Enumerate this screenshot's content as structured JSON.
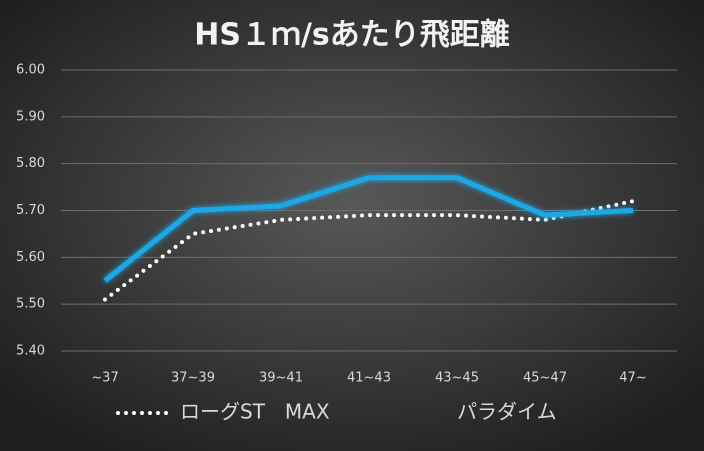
{
  "chart_data": {
    "type": "line",
    "title": "HS１ｍ/sあたり飛距離",
    "categories": [
      "~37",
      "37~39",
      "39~41",
      "41~43",
      "43~45",
      "45~47",
      "47~"
    ],
    "series": [
      {
        "name": "ローグST　MAX",
        "color": "#ffffff",
        "style": "dotted",
        "values": [
          5.51,
          5.65,
          5.68,
          5.69,
          5.69,
          5.68,
          5.72
        ]
      },
      {
        "name": "パラダイム",
        "color": "#1ea8e6",
        "style": "solid",
        "values": [
          5.55,
          5.7,
          5.71,
          5.77,
          5.77,
          5.69,
          5.7
        ]
      }
    ],
    "ylim": [
      5.4,
      6.0
    ],
    "yticks": [
      {
        "value": 5.4,
        "label": "5.40"
      },
      {
        "value": 5.5,
        "label": "5.50"
      },
      {
        "value": 5.6,
        "label": "5.60"
      },
      {
        "value": 5.7,
        "label": "5.70"
      },
      {
        "value": 5.8,
        "label": "5.80"
      },
      {
        "value": 5.9,
        "label": "5.90"
      },
      {
        "value": 6.0,
        "label": "6.00"
      }
    ],
    "grid": true,
    "legend": "bottom"
  }
}
